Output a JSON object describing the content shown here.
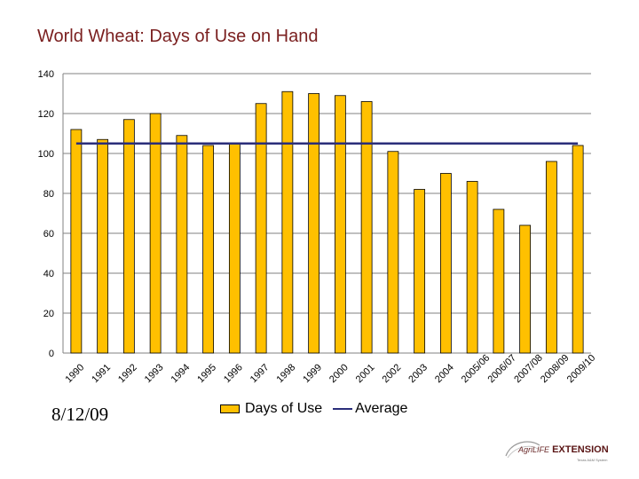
{
  "title": "World Wheat: Days of Use on Hand",
  "footer": {
    "date": "8/12/09"
  },
  "logo": {
    "prefix": "AgriLIFE",
    "name": "EXTENSION",
    "tagline": "Texas A&M System"
  },
  "chart_data": {
    "type": "bar",
    "title": "World Wheat: Days of Use on Hand",
    "xlabel": "",
    "ylabel": "",
    "categories": [
      "1990",
      "1991",
      "1992",
      "1993",
      "1994",
      "1995",
      "1996",
      "1997",
      "1998",
      "1999",
      "2000",
      "2001",
      "2002",
      "2003",
      "2004",
      "2005/06",
      "2006/07",
      "2007/08",
      "2008/09",
      "2009/10"
    ],
    "series": [
      {
        "name": "Days of Use",
        "type": "bar",
        "color": "#ffc000",
        "values": [
          112,
          107,
          117,
          120,
          109,
          104,
          105,
          125,
          131,
          130,
          129,
          126,
          101,
          82,
          90,
          86,
          72,
          64,
          96,
          104
        ]
      },
      {
        "name": "Average",
        "type": "line",
        "color": "#2b2e7a",
        "value": 105
      }
    ],
    "ylim": [
      0,
      140
    ],
    "yticks": [
      0,
      20,
      40,
      60,
      80,
      100,
      120,
      140
    ],
    "grid": true,
    "legend": "bottom"
  }
}
